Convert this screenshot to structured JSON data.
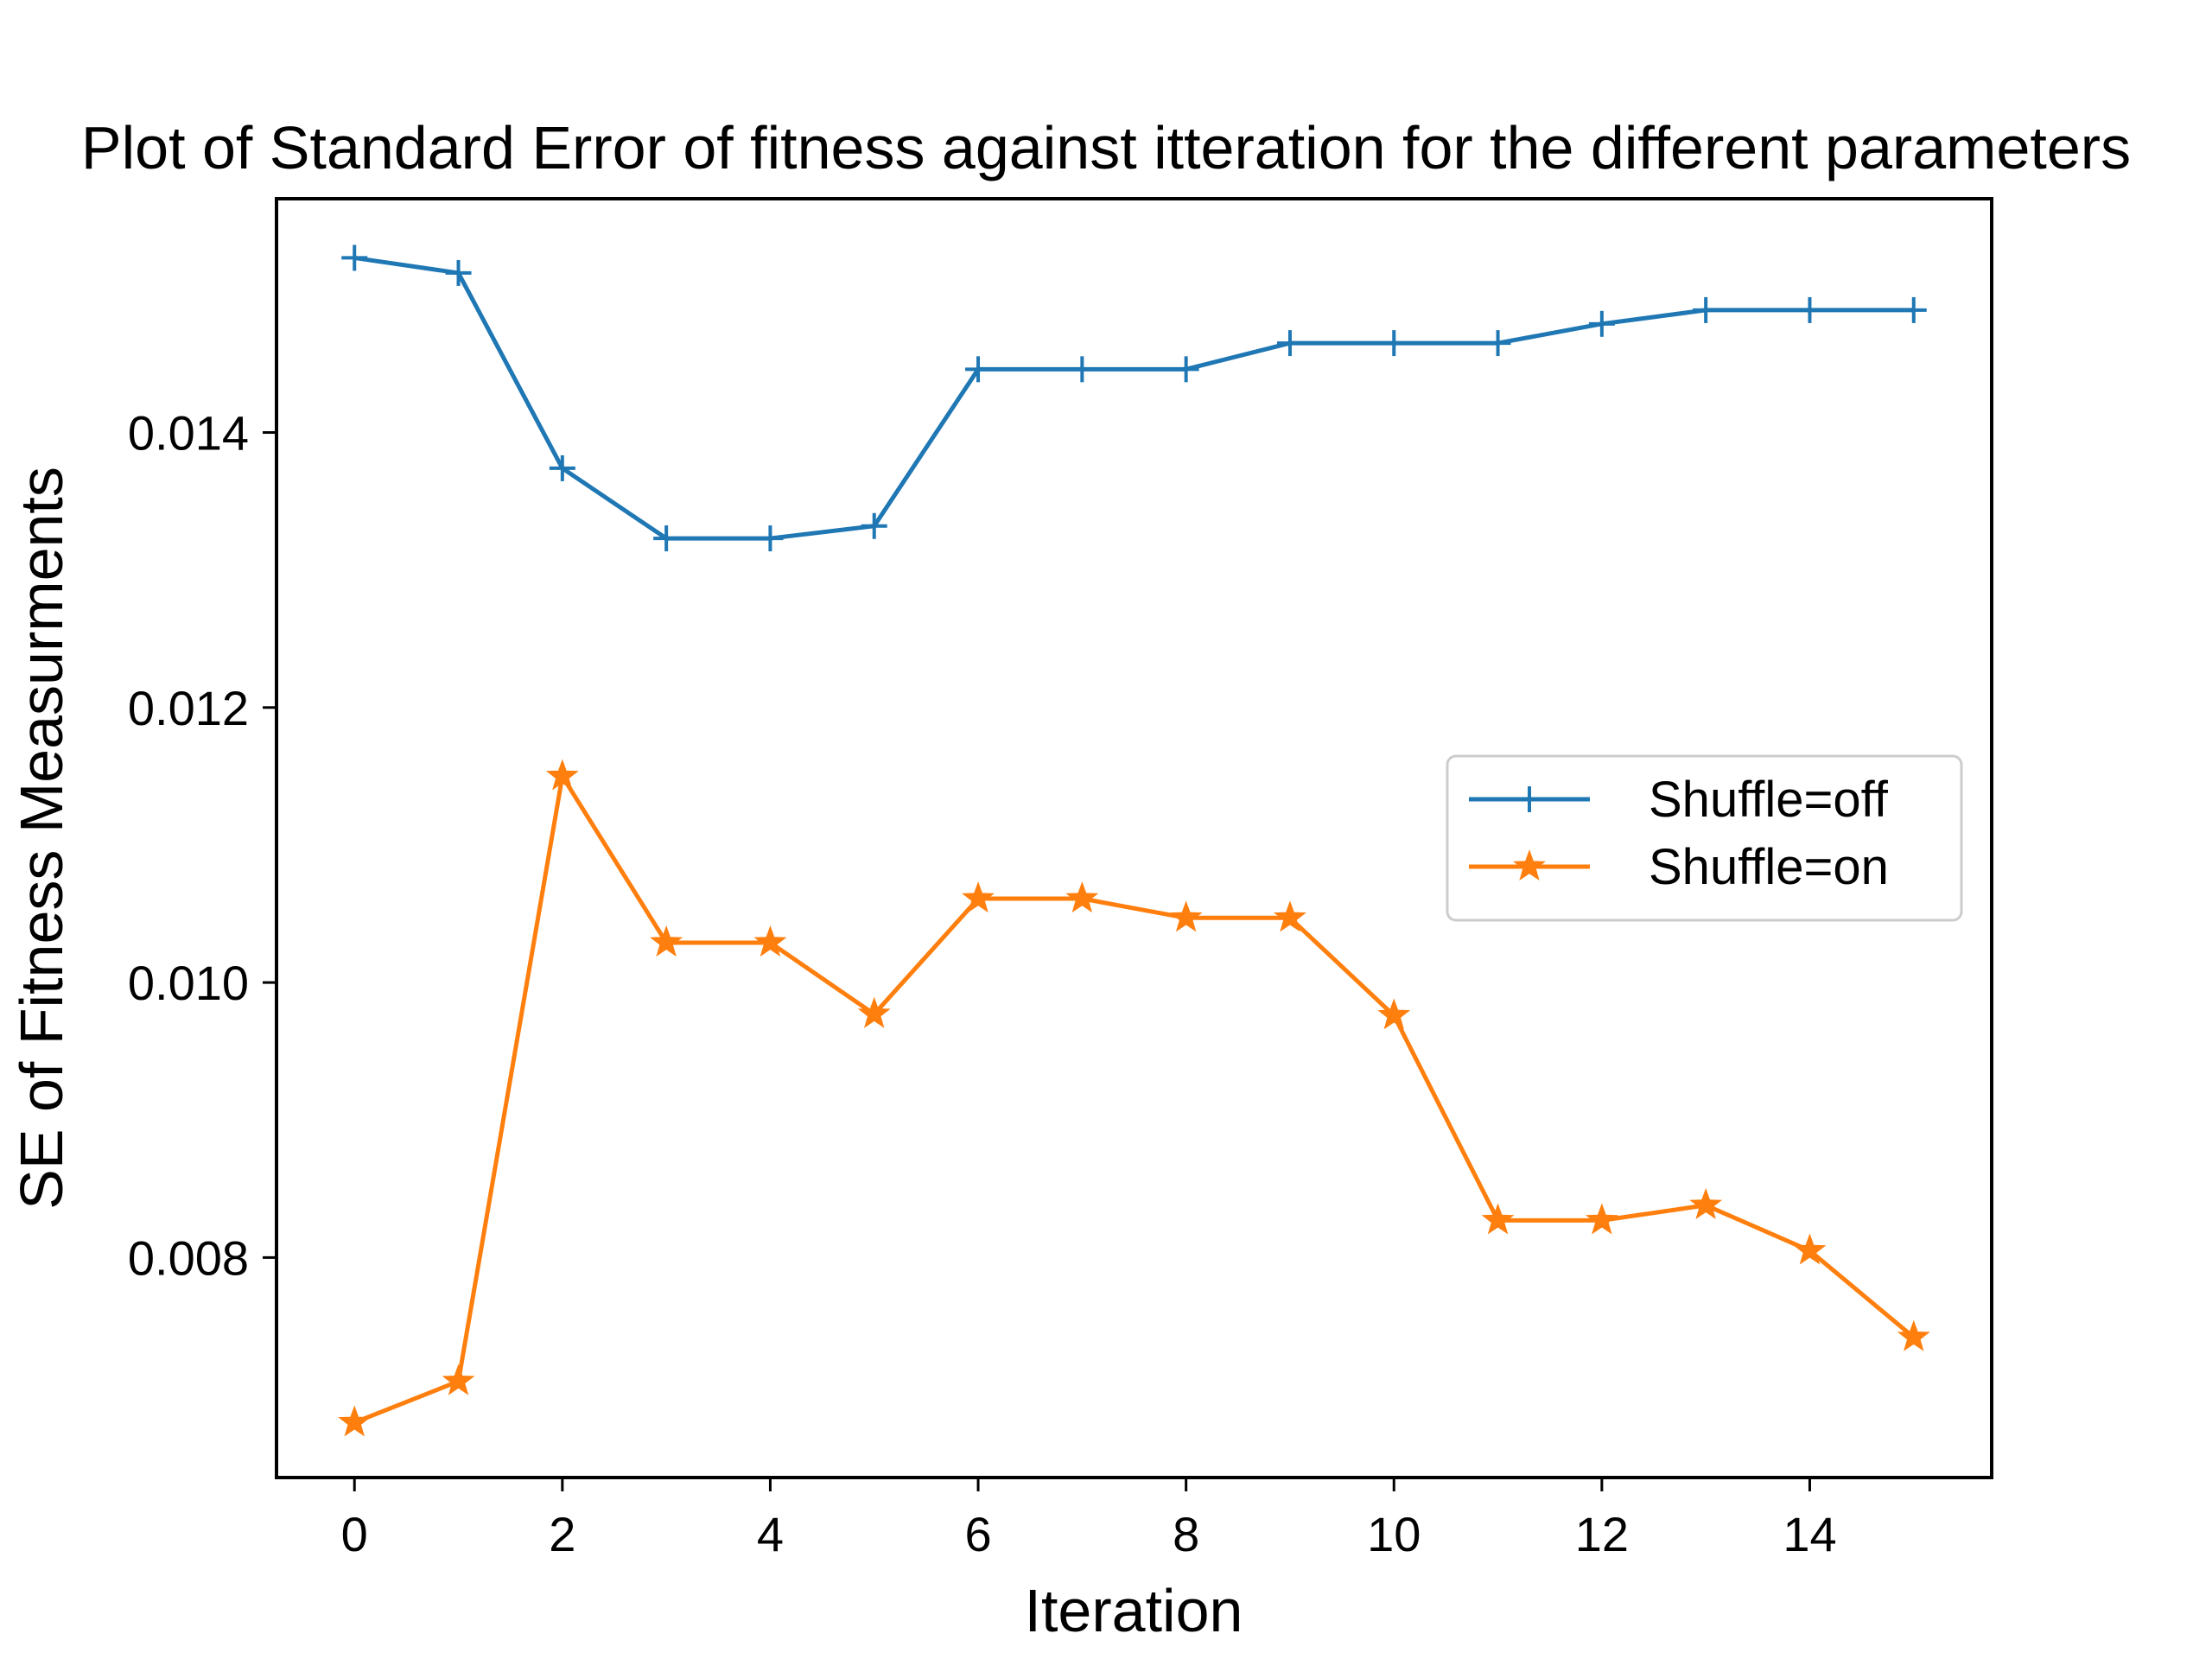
{
  "chart_data": {
    "type": "line",
    "title": "Plot of Standard Error of fitness against itteration for the different parameters",
    "xlabel": "Iteration",
    "ylabel": "SE of Fitness Measurments",
    "x": [
      0,
      1,
      2,
      3,
      4,
      5,
      6,
      7,
      8,
      9,
      10,
      11,
      12,
      13,
      14,
      15
    ],
    "xlim": [
      -0.75,
      15.75
    ],
    "ylim": [
      0.0064,
      0.0157
    ],
    "xticks": [
      0,
      2,
      4,
      6,
      8,
      10,
      12,
      14
    ],
    "xtick_labels": [
      "0",
      "2",
      "4",
      "6",
      "8",
      "10",
      "12",
      "14"
    ],
    "yticks": [
      0.008,
      0.01,
      0.012,
      0.014
    ],
    "ytick_labels": [
      "0.008",
      "0.010",
      "0.012",
      "0.014"
    ],
    "grid": false,
    "legend": "center-right",
    "series": [
      {
        "name": "Shuffle=off",
        "color": "#1f77b4",
        "marker": "plus",
        "values": [
          0.01527,
          0.01516,
          0.01374,
          0.01323,
          0.01323,
          0.01332,
          0.01446,
          0.01446,
          0.01446,
          0.01465,
          0.01465,
          0.01465,
          0.01479,
          0.01489,
          0.01489,
          0.01489
        ]
      },
      {
        "name": "Shuffle=on",
        "color": "#ff7f0e",
        "marker": "star",
        "values": [
          0.0068,
          0.0071,
          0.0115,
          0.01029,
          0.01029,
          0.00977,
          0.01061,
          0.01061,
          0.01047,
          0.01047,
          0.00976,
          0.00827,
          0.00827,
          0.00838,
          0.00805,
          0.00742
        ]
      }
    ]
  }
}
